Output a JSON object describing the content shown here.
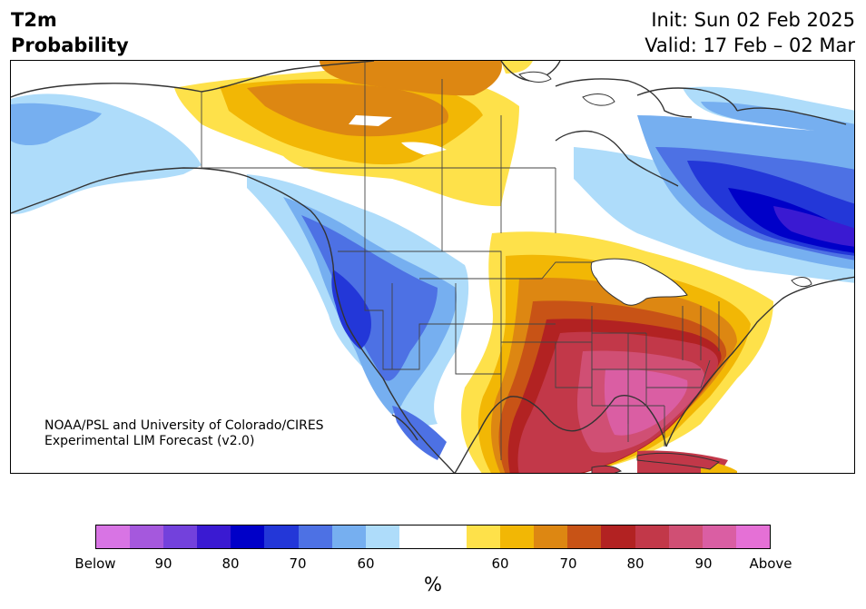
{
  "header": {
    "variable": "T2m",
    "subtitle": "Probability",
    "init": "Init: Sun 02 Feb 2025",
    "valid": "Valid: 17 Feb – 02 Mar"
  },
  "credit": {
    "line1": "NOAA/PSL and University of Colorado/CIRES",
    "line2": "Experimental LIM Forecast (v2.0)"
  },
  "colorbar": {
    "unit": "%",
    "colors": [
      "#d874e4",
      "#a558dd",
      "#7341dc",
      "#3a1ad2",
      "#0000c8",
      "#2337d8",
      "#4d71e4",
      "#76aff0",
      "#aedcfa",
      "#ffffff",
      "#ffffff",
      "#fee14a",
      "#f2b705",
      "#dd8712",
      "#c85316",
      "#b22222",
      "#c23849",
      "#d04f74",
      "#da5ea3",
      "#e570d6"
    ],
    "ticks": [
      "Below",
      "90",
      "80",
      "70",
      "60",
      "60",
      "70",
      "80",
      "90",
      "Above"
    ]
  },
  "legend_colors": {
    "below_strong": "#0000c8",
    "below_mid": "#4d71e4",
    "below_weak": "#aedcfa",
    "above_weak": "#fee14a",
    "above_mid": "#dd8712",
    "above_strong": "#c23849",
    "above_top": "#da5ea3"
  }
}
